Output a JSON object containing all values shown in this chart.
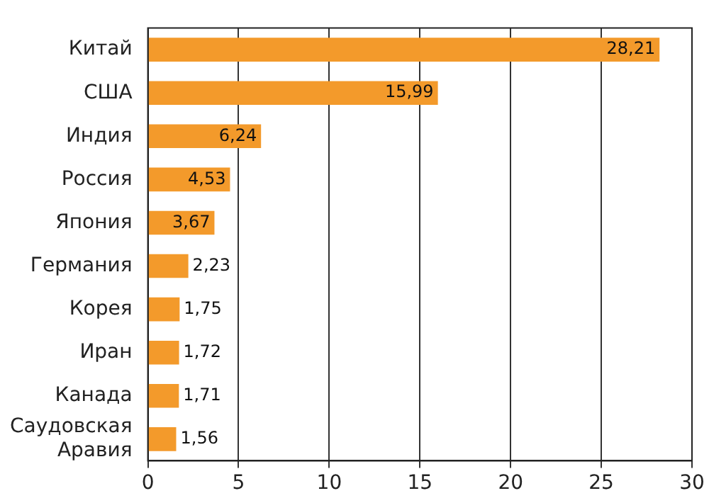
{
  "chart_data": {
    "type": "bar",
    "orientation": "horizontal",
    "categories": [
      "Китай",
      "США",
      "Индия",
      "Россия",
      "Япония",
      "Германия",
      "Корея",
      "Иран",
      "Канада",
      "Саудовская Аравия"
    ],
    "values": [
      28.21,
      15.99,
      6.24,
      4.53,
      3.67,
      2.23,
      1.75,
      1.72,
      1.71,
      1.56
    ],
    "value_labels": [
      "28,21",
      "15,99",
      "6,24",
      "4,53",
      "3,67",
      "2,23",
      "1,75",
      "1,72",
      "1,71",
      "1,56"
    ],
    "color": "#f39a2b",
    "xlim": [
      0,
      30
    ],
    "xticks": [
      0,
      5,
      10,
      15,
      20,
      25,
      30
    ],
    "grid": "x",
    "legend": false
  }
}
